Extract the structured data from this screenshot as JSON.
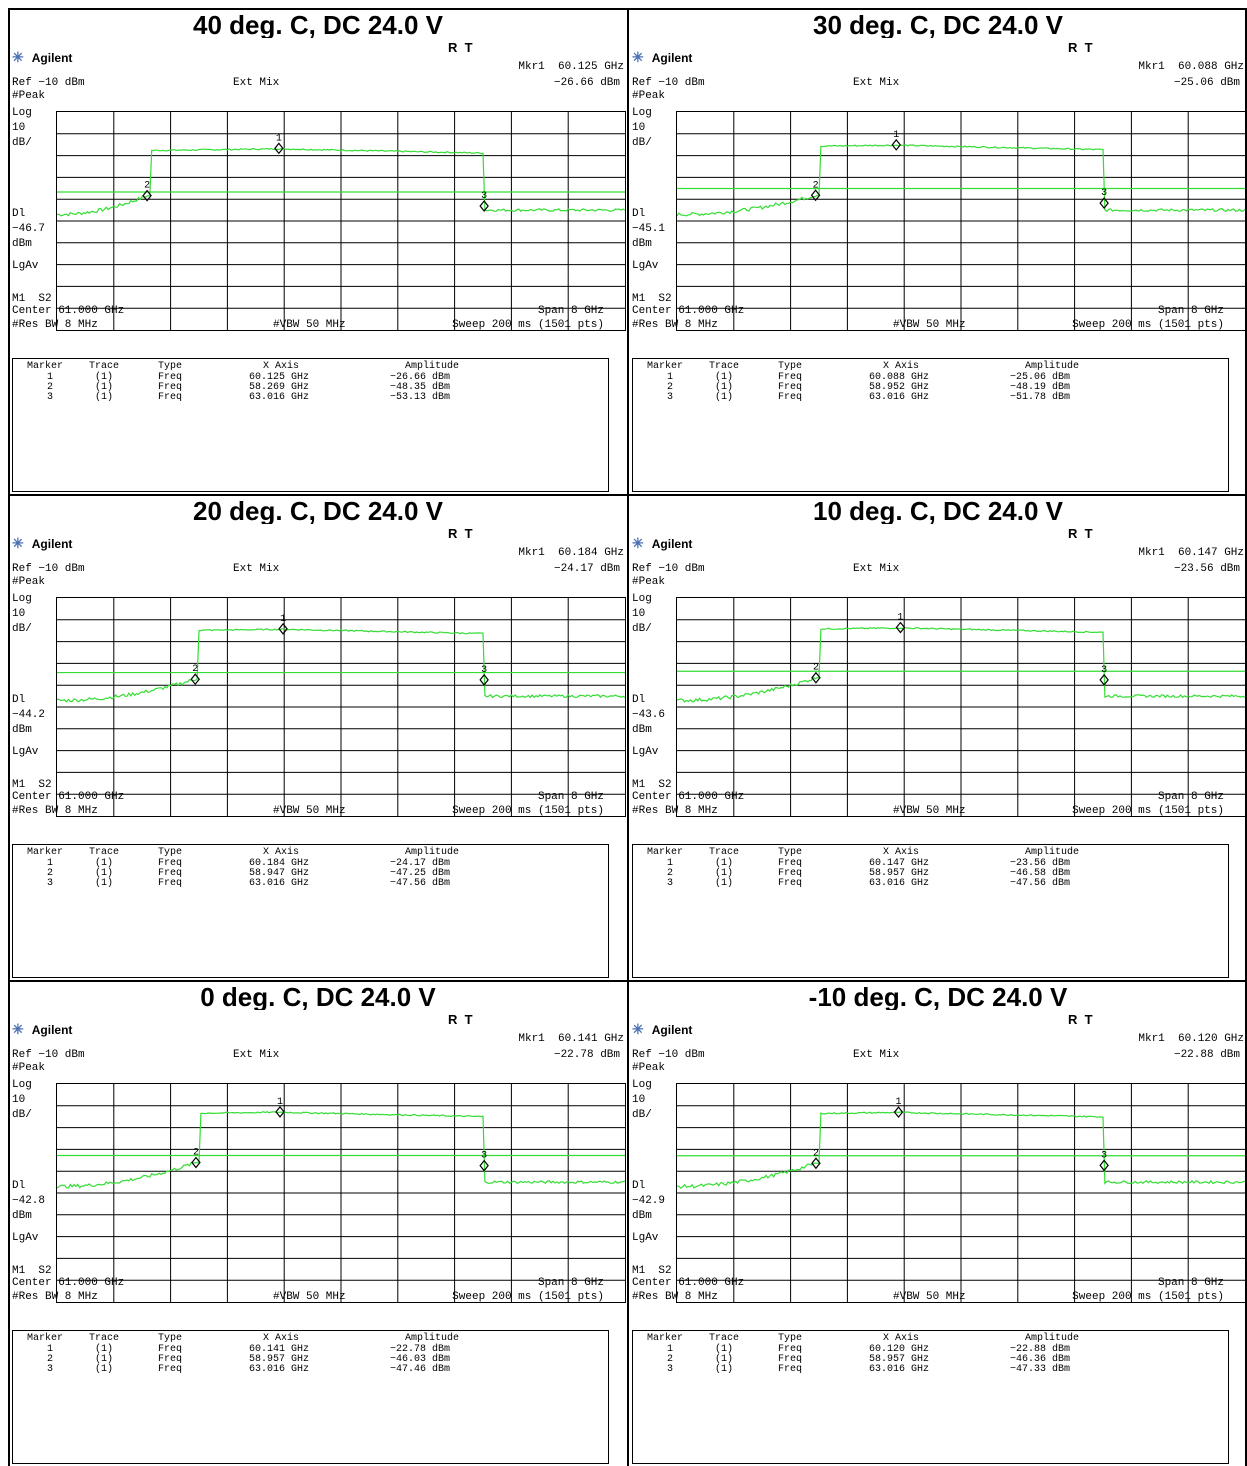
{
  "colors": {
    "trace": "#33dd33",
    "grid": "#000000",
    "logo": "#4a6fb3"
  },
  "brand": "Agilent",
  "status": "R  T",
  "common": {
    "ref": "Ref −10 dBm",
    "mode": "Ext Mix",
    "peak": "#Peak",
    "log": "Log",
    "scale_num": "10",
    "scale_unit": "dB/",
    "dl": "Dl",
    "dl_unit": "dBm",
    "lgav": "LgAv",
    "m1s2": "M1  S2",
    "center": "Center 61.000 GHz",
    "span": "Span 8 GHz",
    "rbw": "#Res BW 8 MHz",
    "vbw": "#VBW 50 MHz",
    "sweep": "Sweep 200 ms (1501 pts)",
    "table_headers": [
      "Marker",
      "Trace",
      "Type",
      "X Axis",
      "Amplitude"
    ]
  },
  "panels": [
    {
      "title": "40 deg. C, DC 24.0 V",
      "mkr_freq": "Mkr1  60.125 GHz",
      "mkr_amp": "−26.66 dBm",
      "dl_value": "−46.7",
      "rows": [
        [
          "1",
          "(1)",
          "Freq",
          "60.125 GHz",
          "−26.66 dBm"
        ],
        [
          "2",
          "(1)",
          "Freq",
          "58.269 GHz",
          "−48.35 dBm"
        ],
        [
          "3",
          "(1)",
          "Freq",
          "63.016 GHz",
          "−53.13 dBm"
        ]
      ]
    },
    {
      "title": "30 deg. C, DC 24.0 V",
      "mkr_freq": "Mkr1  60.088 GHz",
      "mkr_amp": "−25.06 dBm",
      "dl_value": "−45.1",
      "rows": [
        [
          "1",
          "(1)",
          "Freq",
          "60.088 GHz",
          "−25.06 dBm"
        ],
        [
          "2",
          "(1)",
          "Freq",
          "58.952 GHz",
          "−48.19 dBm"
        ],
        [
          "3",
          "(1)",
          "Freq",
          "63.016 GHz",
          "−51.78 dBm"
        ]
      ]
    },
    {
      "title": "20 deg. C, DC 24.0 V",
      "mkr_freq": "Mkr1  60.184 GHz",
      "mkr_amp": "−24.17 dBm",
      "dl_value": "−44.2",
      "rows": [
        [
          "1",
          "(1)",
          "Freq",
          "60.184 GHz",
          "−24.17 dBm"
        ],
        [
          "2",
          "(1)",
          "Freq",
          "58.947 GHz",
          "−47.25 dBm"
        ],
        [
          "3",
          "(1)",
          "Freq",
          "63.016 GHz",
          "−47.56 dBm"
        ]
      ]
    },
    {
      "title": "10 deg. C, DC 24.0 V",
      "mkr_freq": "Mkr1  60.147 GHz",
      "mkr_amp": "−23.56 dBm",
      "dl_value": "−43.6",
      "rows": [
        [
          "1",
          "(1)",
          "Freq",
          "60.147 GHz",
          "−23.56 dBm"
        ],
        [
          "2",
          "(1)",
          "Freq",
          "58.957 GHz",
          "−46.58 dBm"
        ],
        [
          "3",
          "(1)",
          "Freq",
          "63.016 GHz",
          "−47.56 dBm"
        ]
      ]
    },
    {
      "title": "0 deg. C, DC 24.0 V",
      "mkr_freq": "Mkr1  60.141 GHz",
      "mkr_amp": "−22.78 dBm",
      "dl_value": "−42.8",
      "rows": [
        [
          "1",
          "(1)",
          "Freq",
          "60.141 GHz",
          "−22.78 dBm"
        ],
        [
          "2",
          "(1)",
          "Freq",
          "58.957 GHz",
          "−46.03 dBm"
        ],
        [
          "3",
          "(1)",
          "Freq",
          "63.016 GHz",
          "−47.46 dBm"
        ]
      ]
    },
    {
      "title": "-10 deg. C, DC 24.0 V",
      "mkr_freq": "Mkr1  60.120 GHz",
      "mkr_amp": "−22.88 dBm",
      "dl_value": "−42.9",
      "rows": [
        [
          "1",
          "(1)",
          "Freq",
          "60.120 GHz",
          "−22.88 dBm"
        ],
        [
          "2",
          "(1)",
          "Freq",
          "58.957 GHz",
          "−46.36 dBm"
        ],
        [
          "3",
          "(1)",
          "Freq",
          "63.016 GHz",
          "−47.33 dBm"
        ]
      ]
    }
  ],
  "chart_data": [
    {
      "type": "line",
      "title": "40 deg. C, DC 24.0 V",
      "xlim": [
        57,
        65
      ],
      "ylim": [
        -110,
        -10
      ],
      "display_line": -46.7,
      "markers": [
        {
          "label": "1",
          "x": 60.125,
          "y": -26.66
        },
        {
          "label": "2",
          "x": 58.269,
          "y": -48.35
        },
        {
          "label": "3",
          "x": 63.016,
          "y": -53.13
        }
      ]
    },
    {
      "type": "line",
      "title": "30 deg. C, DC 24.0 V",
      "xlim": [
        57,
        65
      ],
      "ylim": [
        -110,
        -10
      ],
      "display_line": -45.1,
      "markers": [
        {
          "label": "1",
          "x": 60.088,
          "y": -25.06
        },
        {
          "label": "2",
          "x": 58.952,
          "y": -48.19
        },
        {
          "label": "3",
          "x": 63.016,
          "y": -51.78
        }
      ]
    },
    {
      "type": "line",
      "title": "20 deg. C, DC 24.0 V",
      "xlim": [
        57,
        65
      ],
      "ylim": [
        -110,
        -10
      ],
      "display_line": -44.2,
      "markers": [
        {
          "label": "1",
          "x": 60.184,
          "y": -24.17
        },
        {
          "label": "2",
          "x": 58.947,
          "y": -47.25
        },
        {
          "label": "3",
          "x": 63.016,
          "y": -47.56
        }
      ]
    },
    {
      "type": "line",
      "title": "10 deg. C, DC 24.0 V",
      "xlim": [
        57,
        65
      ],
      "ylim": [
        -110,
        -10
      ],
      "display_line": -43.6,
      "markers": [
        {
          "label": "1",
          "x": 60.147,
          "y": -23.56
        },
        {
          "label": "2",
          "x": 58.957,
          "y": -46.58
        },
        {
          "label": "3",
          "x": 63.016,
          "y": -47.56
        }
      ]
    },
    {
      "type": "line",
      "title": "0 deg. C, DC 24.0 V",
      "xlim": [
        57,
        65
      ],
      "ylim": [
        -110,
        -10
      ],
      "display_line": -42.8,
      "markers": [
        {
          "label": "1",
          "x": 60.141,
          "y": -22.78
        },
        {
          "label": "2",
          "x": 58.957,
          "y": -46.03
        },
        {
          "label": "3",
          "x": 63.016,
          "y": -47.46
        }
      ]
    },
    {
      "type": "line",
      "title": "-10 deg. C, DC 24.0 V",
      "xlim": [
        57,
        65
      ],
      "ylim": [
        -110,
        -10
      ],
      "display_line": -42.9,
      "markers": [
        {
          "label": "1",
          "x": 60.12,
          "y": -22.88
        },
        {
          "label": "2",
          "x": 58.957,
          "y": -46.36
        },
        {
          "label": "3",
          "x": 63.016,
          "y": -47.33
        }
      ]
    }
  ]
}
